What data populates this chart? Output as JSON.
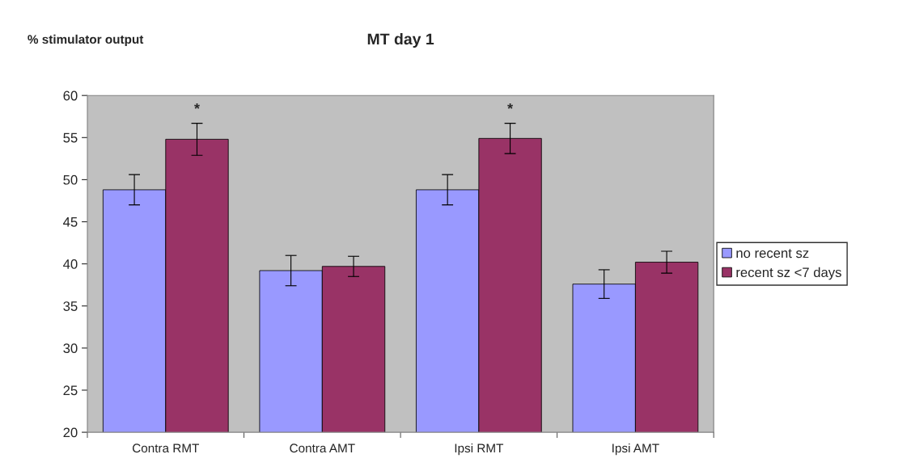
{
  "chart_data": {
    "type": "bar",
    "title": "MT day 1",
    "ylabel": "% stimulator output",
    "categories": [
      "Contra RMT",
      "Contra AMT",
      "Ipsi RMT",
      "Ipsi AMT"
    ],
    "series": [
      {
        "name": "no recent sz",
        "color": "#9999ff",
        "values": [
          48.8,
          39.2,
          48.8,
          37.6
        ],
        "errors": [
          1.8,
          1.8,
          1.8,
          1.7
        ]
      },
      {
        "name": "recent sz <7 days",
        "color": "#993366",
        "values": [
          54.8,
          39.7,
          54.9,
          40.2
        ],
        "errors": [
          1.9,
          1.2,
          1.8,
          1.3
        ]
      }
    ],
    "annotations": [
      "*",
      "*"
    ],
    "ylim": [
      20,
      60
    ],
    "yticks": [
      20,
      25,
      30,
      35,
      40,
      45,
      50,
      55,
      60
    ],
    "grid": false,
    "legend": "right"
  }
}
